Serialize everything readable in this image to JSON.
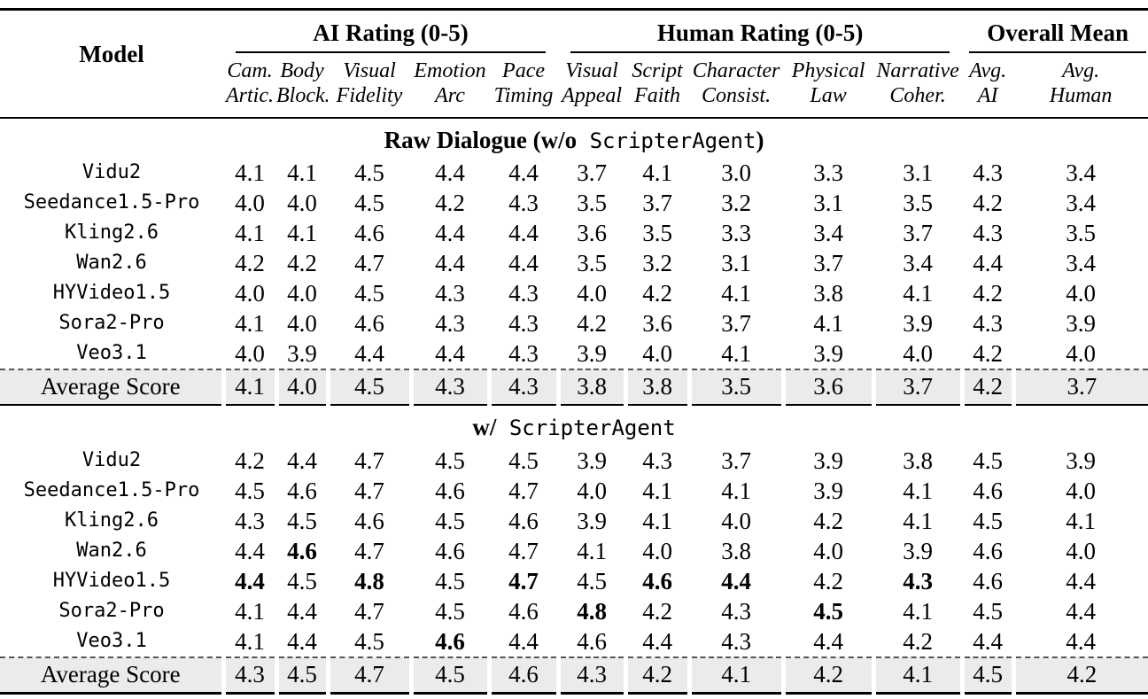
{
  "table": {
    "model_header": "Model",
    "groups": [
      {
        "label": "AI Rating (0-5)",
        "columns": [
          {
            "line1": "Cam.",
            "line2": "Artic."
          },
          {
            "line1": "Body",
            "line2": "Block."
          },
          {
            "line1": "Visual",
            "line2": "Fidelity"
          },
          {
            "line1": "Emotion",
            "line2": "Arc"
          },
          {
            "line1": "Pace",
            "line2": "Timing"
          }
        ]
      },
      {
        "label": "Human Rating (0-5)",
        "columns": [
          {
            "line1": "Visual",
            "line2": "Appeal"
          },
          {
            "line1": "Script",
            "line2": "Faith"
          },
          {
            "line1": "Character",
            "line2": "Consist."
          },
          {
            "line1": "Physical",
            "line2": "Law"
          },
          {
            "line1": "Narrative",
            "line2": "Coher."
          }
        ]
      },
      {
        "label": "Overall Mean",
        "columns": [
          {
            "line1": "Avg.",
            "line2": "AI"
          },
          {
            "line1": "Avg.",
            "line2": "Human"
          }
        ]
      }
    ],
    "sections": [
      {
        "title": {
          "bold_prefix": "Raw Dialogue (w/o",
          "mono": "ScripterAgent",
          "bold_suffix": ")"
        },
        "rows": [
          {
            "model": "Vidu2",
            "values": [
              "4.1",
              "4.1",
              "4.5",
              "4.4",
              "4.4",
              "3.7",
              "4.1",
              "3.0",
              "3.3",
              "3.1",
              "4.3",
              "3.4"
            ],
            "bold_indices": []
          },
          {
            "model": "Seedance1.5-Pro",
            "values": [
              "4.0",
              "4.0",
              "4.5",
              "4.2",
              "4.3",
              "3.5",
              "3.7",
              "3.2",
              "3.1",
              "3.5",
              "4.2",
              "3.4"
            ],
            "bold_indices": []
          },
          {
            "model": "Kling2.6",
            "values": [
              "4.1",
              "4.1",
              "4.6",
              "4.4",
              "4.4",
              "3.6",
              "3.5",
              "3.3",
              "3.4",
              "3.7",
              "4.3",
              "3.5"
            ],
            "bold_indices": []
          },
          {
            "model": "Wan2.6",
            "values": [
              "4.2",
              "4.2",
              "4.7",
              "4.4",
              "4.4",
              "3.5",
              "3.2",
              "3.1",
              "3.7",
              "3.4",
              "4.4",
              "3.4"
            ],
            "bold_indices": []
          },
          {
            "model": "HYVideo1.5",
            "values": [
              "4.0",
              "4.0",
              "4.5",
              "4.3",
              "4.3",
              "4.0",
              "4.2",
              "4.1",
              "3.8",
              "4.1",
              "4.2",
              "4.0"
            ],
            "bold_indices": []
          },
          {
            "model": "Sora2-Pro",
            "values": [
              "4.1",
              "4.0",
              "4.6",
              "4.3",
              "4.3",
              "4.2",
              "3.6",
              "3.7",
              "4.1",
              "3.9",
              "4.3",
              "3.9"
            ],
            "bold_indices": []
          },
          {
            "model": "Veo3.1",
            "values": [
              "4.0",
              "3.9",
              "4.4",
              "4.4",
              "4.3",
              "3.9",
              "4.0",
              "4.1",
              "3.9",
              "4.0",
              "4.2",
              "4.0"
            ],
            "bold_indices": []
          }
        ],
        "average_row": {
          "label": "Average Score",
          "values": [
            "4.1",
            "4.0",
            "4.5",
            "4.3",
            "4.3",
            "3.8",
            "3.8",
            "3.5",
            "3.6",
            "3.7",
            "4.2",
            "3.7"
          ]
        }
      },
      {
        "title": {
          "bold_prefix": "w/",
          "mono": "ScripterAgent",
          "bold_suffix": ""
        },
        "rows": [
          {
            "model": "Vidu2",
            "values": [
              "4.2",
              "4.4",
              "4.7",
              "4.5",
              "4.5",
              "3.9",
              "4.3",
              "3.7",
              "3.9",
              "3.8",
              "4.5",
              "3.9"
            ],
            "bold_indices": []
          },
          {
            "model": "Seedance1.5-Pro",
            "values": [
              "4.5",
              "4.6",
              "4.7",
              "4.6",
              "4.7",
              "4.0",
              "4.1",
              "4.1",
              "3.9",
              "4.1",
              "4.6",
              "4.0"
            ],
            "bold_indices": []
          },
          {
            "model": "Kling2.6",
            "values": [
              "4.3",
              "4.5",
              "4.6",
              "4.5",
              "4.6",
              "3.9",
              "4.1",
              "4.0",
              "4.2",
              "4.1",
              "4.5",
              "4.1"
            ],
            "bold_indices": []
          },
          {
            "model": "Wan2.6",
            "values": [
              "4.4",
              "4.6",
              "4.7",
              "4.6",
              "4.7",
              "4.1",
              "4.0",
              "3.8",
              "4.0",
              "3.9",
              "4.6",
              "4.0"
            ],
            "bold_indices": [
              1
            ]
          },
          {
            "model": "HYVideo1.5",
            "values": [
              "4.4",
              "4.5",
              "4.8",
              "4.5",
              "4.7",
              "4.5",
              "4.6",
              "4.4",
              "4.2",
              "4.3",
              "4.6",
              "4.4"
            ],
            "bold_indices": [
              0,
              2,
              4,
              6,
              7,
              9
            ]
          },
          {
            "model": "Sora2-Pro",
            "values": [
              "4.1",
              "4.4",
              "4.7",
              "4.5",
              "4.6",
              "4.8",
              "4.2",
              "4.3",
              "4.5",
              "4.1",
              "4.5",
              "4.4"
            ],
            "bold_indices": [
              5,
              8
            ]
          },
          {
            "model": "Veo3.1",
            "values": [
              "4.1",
              "4.4",
              "4.5",
              "4.6",
              "4.4",
              "4.6",
              "4.4",
              "4.3",
              "4.4",
              "4.2",
              "4.4",
              "4.4"
            ],
            "bold_indices": [
              3
            ]
          }
        ],
        "average_row": {
          "label": "Average Score",
          "values": [
            "4.3",
            "4.5",
            "4.7",
            "4.5",
            "4.6",
            "4.3",
            "4.2",
            "4.1",
            "4.2",
            "4.1",
            "4.5",
            "4.2"
          ]
        }
      }
    ],
    "colors": {
      "rule": "#000000",
      "average_row_bg": "#ebebeb",
      "dashed_line": "#555555"
    }
  }
}
